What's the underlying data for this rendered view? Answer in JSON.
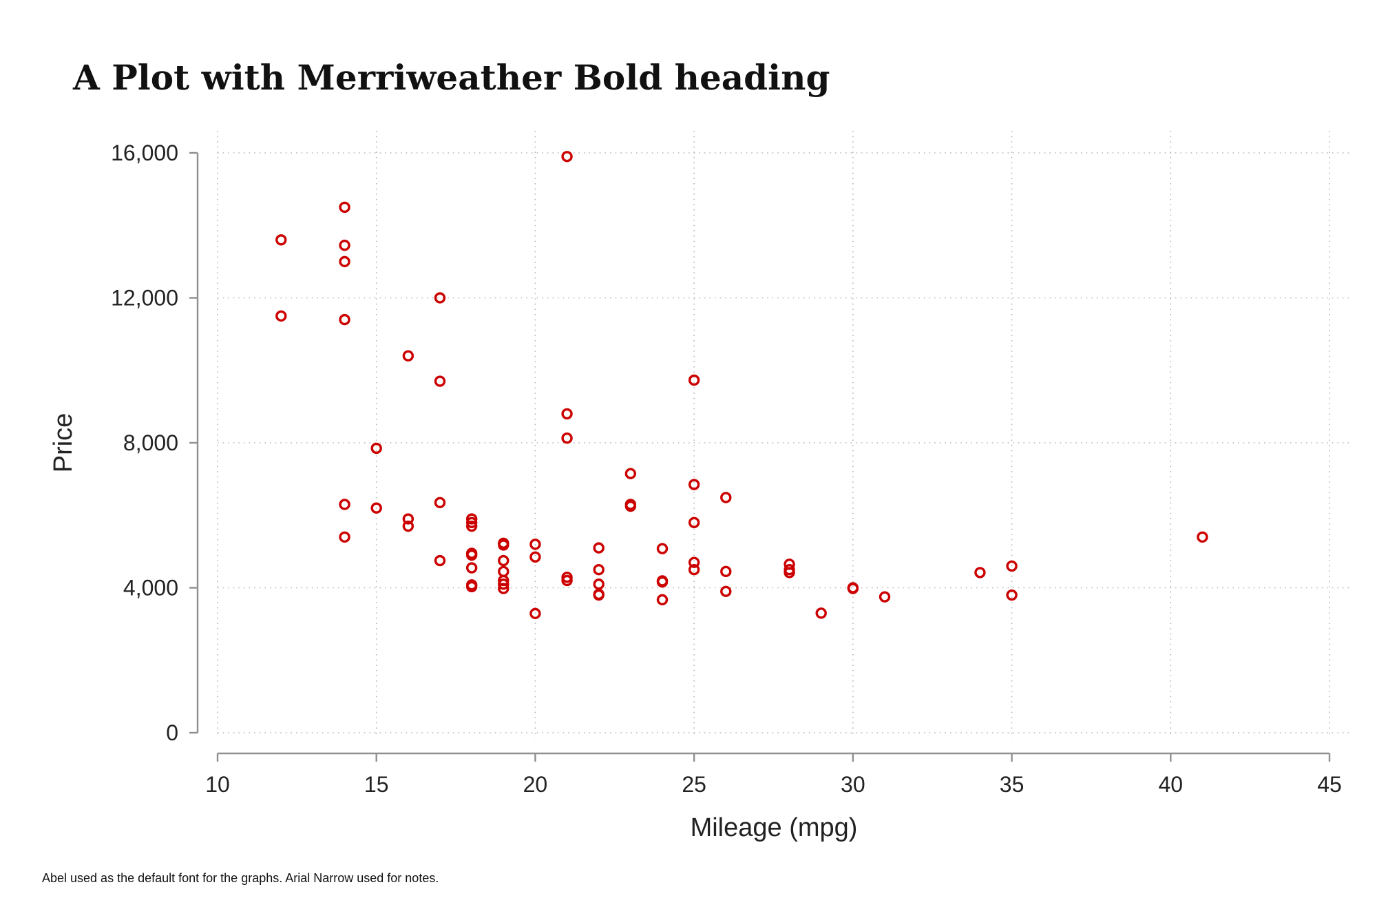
{
  "chart_data": {
    "type": "scatter",
    "title": "A Plot with Merriweather Bold heading",
    "xlabel": "Mileage (mpg)",
    "ylabel": "Price",
    "note": "Abel used as the default font for the graphs. Arial Narrow used for notes.",
    "xlim": [
      10,
      45
    ],
    "ylim": [
      0,
      16000
    ],
    "x_ticks": [
      10,
      15,
      20,
      25,
      30,
      35,
      40,
      45
    ],
    "x_tick_labels": [
      "10",
      "15",
      "20",
      "25",
      "30",
      "35",
      "40",
      "45"
    ],
    "y_ticks": [
      0,
      4000,
      8000,
      12000,
      16000
    ],
    "y_tick_labels": [
      "0",
      "4,000",
      "8,000",
      "12,000",
      "16,000"
    ],
    "grid": true,
    "marker": "hollow-circle",
    "color": "#cc0000",
    "series": [
      {
        "points": [
          [
            12,
            13600
          ],
          [
            12,
            11500
          ],
          [
            14,
            14500
          ],
          [
            14,
            13450
          ],
          [
            14,
            13000
          ],
          [
            14,
            11400
          ],
          [
            14,
            6300
          ],
          [
            14,
            5400
          ],
          [
            15,
            7850
          ],
          [
            15,
            6200
          ],
          [
            16,
            10400
          ],
          [
            16,
            5900
          ],
          [
            16,
            5700
          ],
          [
            17,
            12000
          ],
          [
            17,
            9700
          ],
          [
            17,
            6350
          ],
          [
            17,
            4750
          ],
          [
            18,
            5900
          ],
          [
            18,
            5800
          ],
          [
            18,
            5700
          ],
          [
            18,
            4950
          ],
          [
            18,
            4900
          ],
          [
            18,
            4550
          ],
          [
            18,
            4080
          ],
          [
            18,
            4030
          ],
          [
            19,
            5230
          ],
          [
            19,
            5180
          ],
          [
            19,
            4750
          ],
          [
            19,
            4450
          ],
          [
            19,
            4200
          ],
          [
            19,
            4100
          ],
          [
            19,
            3980
          ],
          [
            20,
            5200
          ],
          [
            20,
            4850
          ],
          [
            20,
            3290
          ],
          [
            21,
            15900
          ],
          [
            21,
            8800
          ],
          [
            21,
            8130
          ],
          [
            21,
            4290
          ],
          [
            21,
            4200
          ],
          [
            22,
            5100
          ],
          [
            22,
            4500
          ],
          [
            22,
            4100
          ],
          [
            22,
            3800
          ],
          [
            22,
            3820
          ],
          [
            23,
            7150
          ],
          [
            23,
            6300
          ],
          [
            23,
            6250
          ],
          [
            24,
            5080
          ],
          [
            24,
            4190
          ],
          [
            24,
            4160
          ],
          [
            24,
            3670
          ],
          [
            25,
            9730
          ],
          [
            25,
            6850
          ],
          [
            25,
            5800
          ],
          [
            25,
            4700
          ],
          [
            25,
            4500
          ],
          [
            26,
            6490
          ],
          [
            26,
            4450
          ],
          [
            26,
            3900
          ],
          [
            28,
            4650
          ],
          [
            28,
            4500
          ],
          [
            28,
            4420
          ],
          [
            29,
            3300
          ],
          [
            30,
            4000
          ],
          [
            30,
            3980
          ],
          [
            31,
            3750
          ],
          [
            34,
            4420
          ],
          [
            35,
            4600
          ],
          [
            35,
            3800
          ],
          [
            41,
            5400
          ]
        ]
      }
    ]
  }
}
